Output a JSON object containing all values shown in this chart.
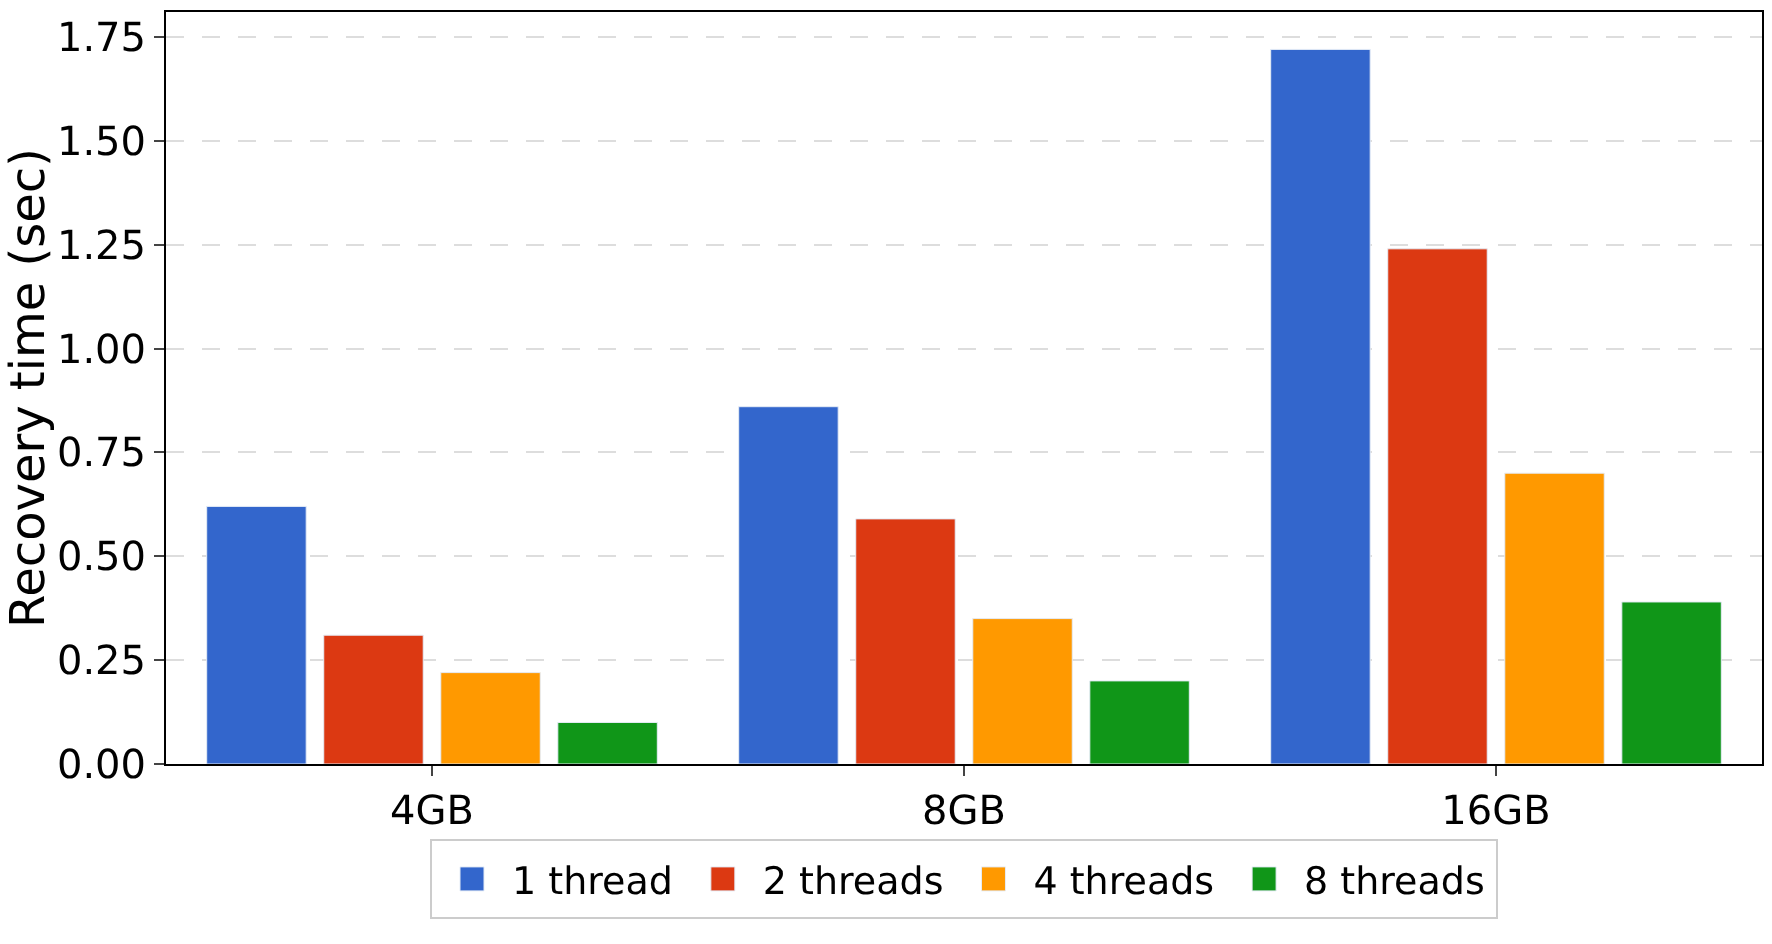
{
  "chart_data": {
    "type": "bar",
    "ylabel": "Recovery time (sec)",
    "categories": [
      "4GB",
      "8GB",
      "16GB"
    ],
    "series": [
      {
        "name": "1 thread",
        "color": "#3366cc",
        "values": [
          0.62,
          0.86,
          1.72
        ]
      },
      {
        "name": "2 threads",
        "color": "#dc3912",
        "values": [
          0.31,
          0.59,
          1.24
        ]
      },
      {
        "name": "4 threads",
        "color": "#ff9900",
        "values": [
          0.22,
          0.35,
          0.7
        ]
      },
      {
        "name": "8 threads",
        "color": "#109618",
        "values": [
          0.1,
          0.2,
          0.39
        ]
      }
    ],
    "ylim": [
      0,
      1.81
    ],
    "yticks": [
      {
        "value": 0,
        "label": "0.00"
      },
      {
        "value": 0.25,
        "label": "0.25"
      },
      {
        "value": 0.5,
        "label": "0.50"
      },
      {
        "value": 0.75,
        "label": "0.75"
      },
      {
        "value": 1,
        "label": "1.00"
      },
      {
        "value": 1.25,
        "label": "1.25"
      },
      {
        "value": 1.5,
        "label": "1.50"
      },
      {
        "value": 1.75,
        "label": "1.75"
      }
    ],
    "grid": "y",
    "legend": "bottom"
  }
}
